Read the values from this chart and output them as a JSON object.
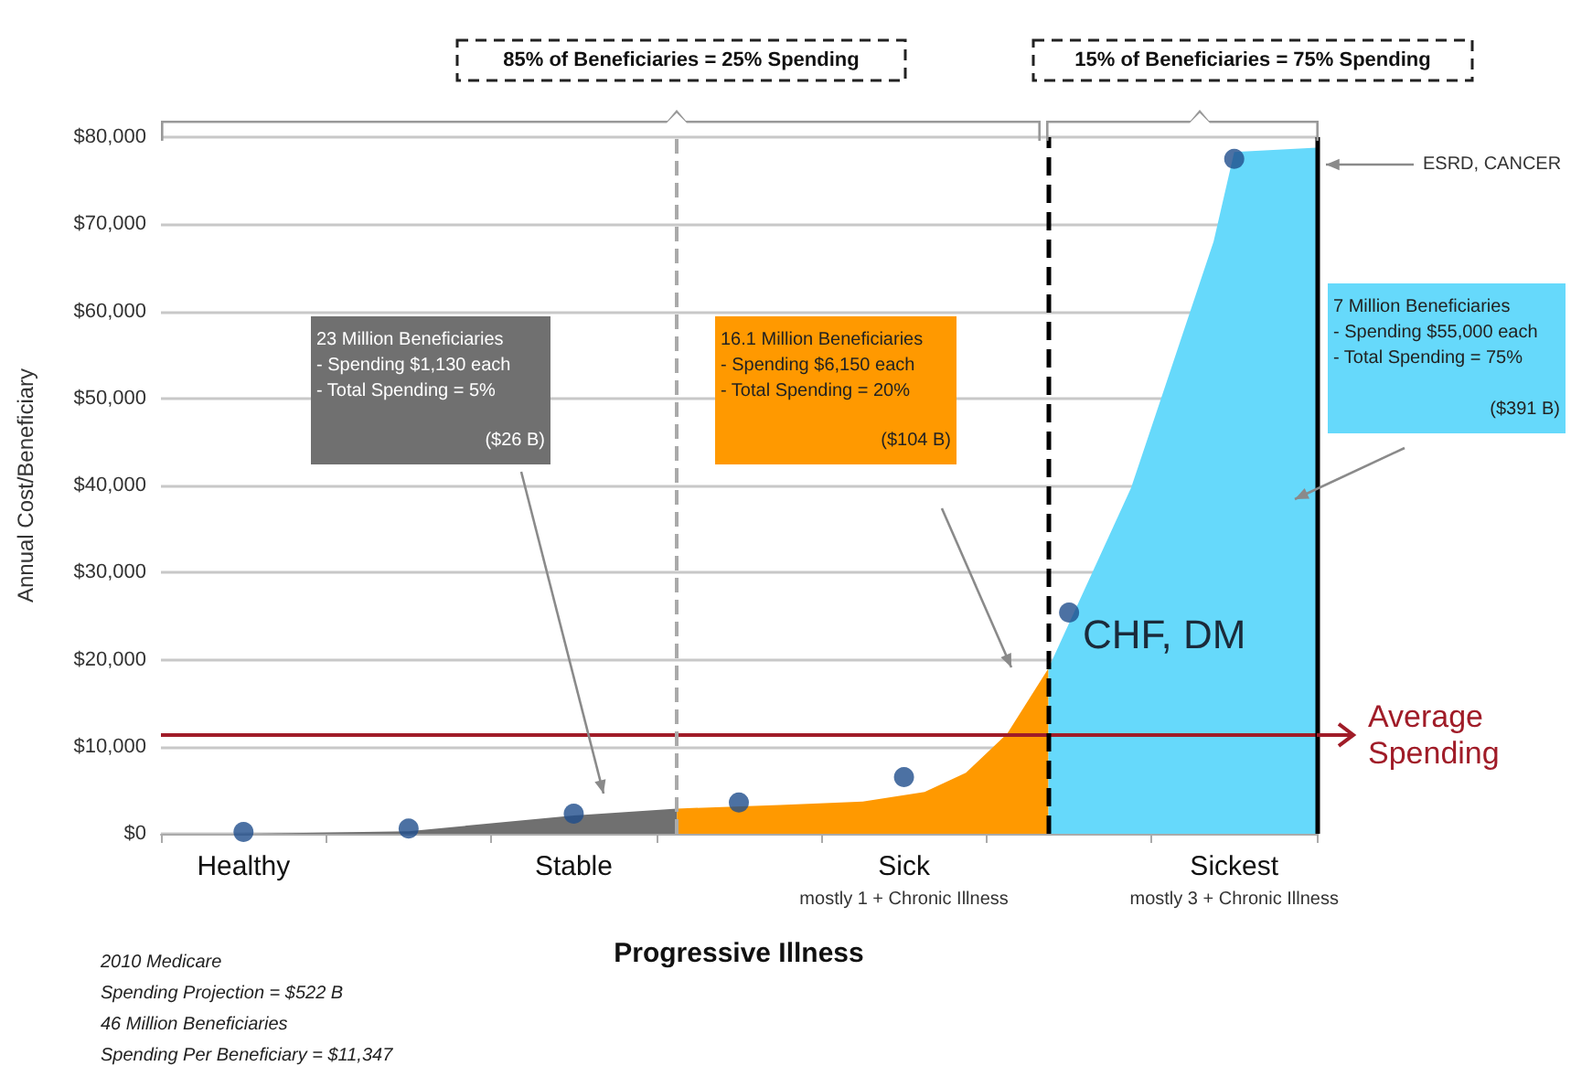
{
  "chart_data": {
    "type": "area",
    "xlabel": "Progressive Illness",
    "ylabel": "Annual Cost/Beneficiary",
    "categories": [
      null,
      null,
      null,
      null,
      "Healthy",
      null,
      null,
      null,
      null,
      null,
      null,
      null,
      null,
      null,
      null,
      null,
      null,
      null,
      null,
      null,
      "Stable",
      null,
      null,
      null,
      null,
      null,
      null,
      null,
      null,
      null,
      null,
      null,
      null,
      null,
      null,
      null,
      "Sick\nmostly 1 + Chronic Illness",
      null,
      null,
      null,
      null,
      null,
      null,
      null,
      null,
      null,
      null,
      null,
      null,
      null,
      null,
      null,
      "Sickest\nmostly 3 + Chronic Illness",
      null,
      null,
      null,
      null
    ],
    "ylim": [
      0,
      80000
    ],
    "yticks": [
      {
        "value": 0,
        "label": "$0"
      },
      {
        "value": 10000,
        "label": "$10,000"
      },
      {
        "value": 20000,
        "label": "$20,000"
      },
      {
        "value": 30000,
        "label": "$30,000"
      },
      {
        "value": 40000,
        "label": "$40,000"
      },
      {
        "value": 50000,
        "label": "$50,000"
      },
      {
        "value": 60000,
        "label": "$60,000"
      },
      {
        "value": 70000,
        "label": "$70,000"
      },
      {
        "value": 80000,
        "label": "$80,000"
      }
    ],
    "grid": "y",
    "series": [
      {
        "color": "#707070",
        "values": [
          null,
          null,
          null,
          null,
          0,
          null,
          null,
          null,
          null,
          null,
          null,
          null,
          300,
          null,
          null,
          null,
          null,
          null,
          null,
          null,
          2100,
          null,
          null,
          null,
          null,
          2900,
          null,
          null,
          null,
          null,
          null,
          null,
          null,
          null,
          null,
          null,
          null,
          null,
          null,
          null,
          null,
          null,
          null,
          null,
          null,
          null,
          null,
          null,
          null,
          null,
          null,
          null,
          null,
          null,
          null,
          null,
          null
        ]
      },
      {
        "color": "#ff9900",
        "values": [
          null,
          null,
          null,
          null,
          null,
          null,
          null,
          null,
          null,
          null,
          null,
          null,
          null,
          null,
          null,
          null,
          null,
          null,
          null,
          null,
          null,
          null,
          null,
          null,
          null,
          2900,
          null,
          null,
          null,
          null,
          3300,
          null,
          null,
          null,
          3700,
          null,
          null,
          4800,
          null,
          7000,
          null,
          11500,
          null,
          19000,
          null,
          null,
          null,
          null,
          null,
          null,
          null,
          null,
          null,
          null,
          null,
          null,
          null
        ]
      },
      {
        "color": "#66d9fb",
        "values": [
          null,
          null,
          null,
          null,
          null,
          null,
          null,
          null,
          null,
          null,
          null,
          null,
          null,
          null,
          null,
          null,
          null,
          null,
          null,
          null,
          null,
          null,
          null,
          null,
          null,
          null,
          null,
          null,
          null,
          null,
          null,
          null,
          null,
          null,
          null,
          null,
          null,
          null,
          null,
          null,
          null,
          null,
          null,
          19000,
          null,
          null,
          null,
          39700,
          null,
          null,
          null,
          68000,
          78300,
          null,
          null,
          null,
          78800
        ]
      },
      {
        "type": "scatter",
        "marker": "circle",
        "color": "#1f4e8c",
        "values": [
          null,
          null,
          null,
          null,
          200,
          null,
          null,
          null,
          null,
          null,
          null,
          null,
          600,
          null,
          null,
          null,
          null,
          null,
          null,
          null,
          2300,
          null,
          null,
          null,
          null,
          null,
          null,
          null,
          3600,
          null,
          null,
          null,
          null,
          null,
          null,
          null,
          6500,
          null,
          null,
          null,
          null,
          null,
          null,
          null,
          25400,
          null,
          null,
          null,
          null,
          null,
          null,
          null,
          77500,
          null,
          null,
          null,
          null
        ]
      }
    ],
    "ref_lines": [
      {
        "axis": "y",
        "value": 11347,
        "label": "Average\nSpending",
        "color": "#a01c28"
      }
    ],
    "annotations": [
      "85% of Beneficiaries = 25% Spending",
      "15% of Beneficiaries = 75% Spending",
      "23 Million Beneficiaries\n- Spending $1,130 each\n- Total Spending = 5%\n($26 B)",
      "16.1 Million Beneficiaries\n- Spending $6,150 each\n- Total Spending = 20%\n($104 B)",
      "7 Million Beneficiaries\n- Spending $55,000 each\n- Total Spending = 75%\n($391 B)",
      "ESRD, CANCER",
      "CHF, DM",
      "2010 Medicare\nSpending Projection = $522 B\n46 Million Beneficiaries\nSpending Per Beneficiary = $11,347"
    ]
  }
}
